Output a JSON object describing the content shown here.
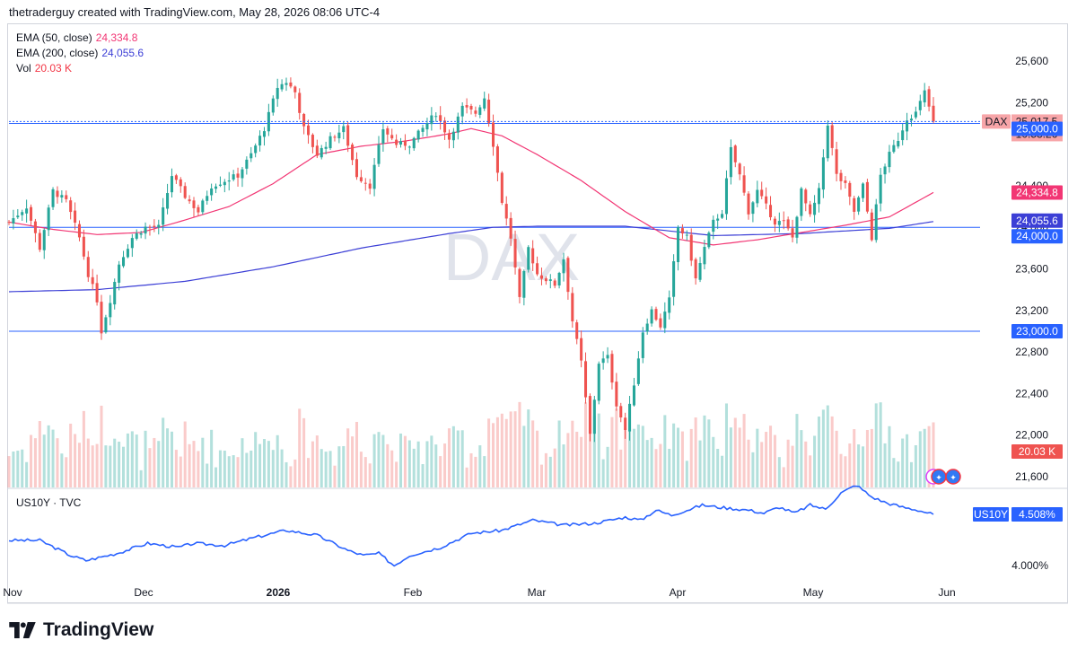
{
  "header": {
    "text": "thetraderguy created with TradingView.com, May 28, 2026 08:06 UTC-4"
  },
  "brand": {
    "name": "TradingView",
    "icon": "tradingview-logo-icon"
  },
  "watermark": "DAX",
  "legend": {
    "ema50": {
      "label": "EMA (50, close)",
      "value": "24,334.8",
      "color": "#f23674"
    },
    "ema200": {
      "label": "EMA (200, close)",
      "value": "24,055.6",
      "color": "#3c3fd6"
    },
    "vol": {
      "label": "Vol",
      "value": "20.03 K",
      "color": "#f23645"
    }
  },
  "sub_legend": {
    "label": "US10Y · TVC"
  },
  "colors": {
    "up": "#26a69a",
    "down": "#ef5350",
    "hline": "#2962ff",
    "ema50": "#f23674",
    "ema200": "#3c3fd6",
    "us10y": "#2962ff"
  },
  "price_tags": {
    "dax_label": "DAX",
    "dax_value": "25,017.5",
    "countdown": "10:53:26",
    "level_25000": "25,000.0",
    "ema50_tag": "24,334.8",
    "ema200_tag": "24,055.6",
    "level_24000": "24,000.0",
    "level_23000": "23,000.0",
    "vol_tag": "20.03 K",
    "us10y_label": "US10Y",
    "us10y_value": "4.508%"
  },
  "chart_data": [
    {
      "type": "candlestick",
      "symbol": "DAX",
      "ylim": [
        21400,
        25800
      ],
      "y_ticks": [
        21600,
        22000,
        22400,
        22800,
        23200,
        23600,
        24000,
        24400,
        25200,
        25600
      ],
      "y_tick_labels": [
        "21,600",
        "22,000",
        "22,400",
        "22,800",
        "23,200",
        "23,600",
        "24,000",
        "24,400",
        "25,200",
        "25,600"
      ],
      "x_labels": [
        "Nov",
        "Dec",
        "2026",
        "Feb",
        "Mar",
        "Apr",
        "May",
        "Jun"
      ],
      "horizontal_levels": [
        25000,
        24000,
        23000
      ],
      "last_close": 25017.5,
      "close_path": [
        [
          0,
          24050
        ],
        [
          4,
          24200
        ],
        [
          7,
          23800
        ],
        [
          10,
          24350
        ],
        [
          13,
          24250
        ],
        [
          16,
          23900
        ],
        [
          18,
          23550
        ],
        [
          20,
          23300
        ],
        [
          21,
          23000
        ],
        [
          23,
          23300
        ],
        [
          25,
          23650
        ],
        [
          28,
          23900
        ],
        [
          31,
          24000
        ],
        [
          34,
          24000
        ],
        [
          37,
          24500
        ],
        [
          40,
          24300
        ],
        [
          43,
          24150
        ],
        [
          46,
          24400
        ],
        [
          49,
          24450
        ],
        [
          52,
          24500
        ],
        [
          55,
          24700
        ],
        [
          58,
          24950
        ],
        [
          61,
          25350
        ],
        [
          63,
          25400
        ],
        [
          65,
          25300
        ],
        [
          67,
          24950
        ],
        [
          70,
          24700
        ],
        [
          73,
          24850
        ],
        [
          76,
          24950
        ],
        [
          79,
          24500
        ],
        [
          82,
          24400
        ],
        [
          85,
          24950
        ],
        [
          88,
          24800
        ],
        [
          91,
          24800
        ],
        [
          94,
          24950
        ],
        [
          97,
          25100
        ],
        [
          100,
          24850
        ],
        [
          103,
          25150
        ],
        [
          106,
          25100
        ],
        [
          108,
          25250
        ],
        [
          110,
          24800
        ],
        [
          112,
          24250
        ],
        [
          114,
          23900
        ],
        [
          116,
          23300
        ],
        [
          118,
          23800
        ],
        [
          120,
          23550
        ],
        [
          122,
          23500
        ],
        [
          124,
          23450
        ],
        [
          126,
          23700
        ],
        [
          128,
          23100
        ],
        [
          130,
          22700
        ],
        [
          132,
          22000
        ],
        [
          134,
          22700
        ],
        [
          136,
          22750
        ],
        [
          138,
          22300
        ],
        [
          140,
          22050
        ],
        [
          142,
          22500
        ],
        [
          144,
          23000
        ],
        [
          146,
          23200
        ],
        [
          148,
          23050
        ],
        [
          150,
          23300
        ],
        [
          152,
          24000
        ],
        [
          154,
          23900
        ],
        [
          156,
          23500
        ],
        [
          158,
          23800
        ],
        [
          160,
          24050
        ],
        [
          162,
          24150
        ],
        [
          164,
          24750
        ],
        [
          166,
          24500
        ],
        [
          168,
          24150
        ],
        [
          170,
          24350
        ],
        [
          172,
          24200
        ],
        [
          174,
          24050
        ],
        [
          176,
          24050
        ],
        [
          178,
          23900
        ],
        [
          180,
          24350
        ],
        [
          182,
          24100
        ],
        [
          184,
          24350
        ],
        [
          186,
          25000
        ],
        [
          188,
          24500
        ],
        [
          190,
          24400
        ],
        [
          192,
          24150
        ],
        [
          194,
          24400
        ],
        [
          196,
          23900
        ],
        [
          198,
          24500
        ],
        [
          200,
          24700
        ],
        [
          202,
          24850
        ],
        [
          204,
          25050
        ],
        [
          206,
          25100
        ],
        [
          208,
          25300
        ],
        [
          210,
          25017.5
        ]
      ],
      "ema50_path": [
        [
          0,
          24050
        ],
        [
          10,
          23980
        ],
        [
          20,
          23930
        ],
        [
          30,
          23950
        ],
        [
          40,
          24070
        ],
        [
          50,
          24200
        ],
        [
          60,
          24420
        ],
        [
          70,
          24700
        ],
        [
          80,
          24780
        ],
        [
          90,
          24830
        ],
        [
          100,
          24900
        ],
        [
          105,
          24950
        ],
        [
          112,
          24880
        ],
        [
          120,
          24700
        ],
        [
          130,
          24450
        ],
        [
          140,
          24150
        ],
        [
          150,
          23900
        ],
        [
          160,
          23830
        ],
        [
          170,
          23880
        ],
        [
          180,
          23950
        ],
        [
          190,
          24020
        ],
        [
          200,
          24100
        ],
        [
          210,
          24334.8
        ]
      ],
      "ema200_path": [
        [
          0,
          23380
        ],
        [
          20,
          23400
        ],
        [
          40,
          23480
        ],
        [
          60,
          23620
        ],
        [
          80,
          23800
        ],
        [
          100,
          23940
        ],
        [
          110,
          24000
        ],
        [
          120,
          24010
        ],
        [
          140,
          24010
        ],
        [
          160,
          23920
        ],
        [
          180,
          23940
        ],
        [
          200,
          23990
        ],
        [
          210,
          24055.6
        ]
      ],
      "volume": {
        "last": "20.03 K"
      }
    },
    {
      "type": "line",
      "series": [
        {
          "name": "US10Y · TVC"
        }
      ],
      "last_value": 4.508,
      "y_tick_labels": [
        "4.000%"
      ],
      "path": [
        [
          0,
          4.25
        ],
        [
          10,
          4.25
        ],
        [
          20,
          4.1
        ],
        [
          25,
          4.05
        ],
        [
          35,
          4.12
        ],
        [
          45,
          4.22
        ],
        [
          55,
          4.18
        ],
        [
          60,
          4.22
        ],
        [
          70,
          4.2
        ],
        [
          80,
          4.28
        ],
        [
          90,
          4.35
        ],
        [
          100,
          4.3
        ],
        [
          110,
          4.15
        ],
        [
          115,
          4.1
        ],
        [
          120,
          4.12
        ],
        [
          125,
          4.0
        ],
        [
          130,
          4.1
        ],
        [
          140,
          4.18
        ],
        [
          150,
          4.32
        ],
        [
          160,
          4.35
        ],
        [
          170,
          4.45
        ],
        [
          180,
          4.4
        ],
        [
          190,
          4.42
        ],
        [
          200,
          4.48
        ],
        [
          205,
          4.45
        ],
        [
          210,
          4.55
        ],
        [
          215,
          4.5
        ],
        [
          225,
          4.6
        ],
        [
          230,
          4.58
        ],
        [
          240,
          4.55
        ],
        [
          245,
          4.52
        ],
        [
          250,
          4.58
        ],
        [
          255,
          4.52
        ],
        [
          260,
          4.6
        ],
        [
          265,
          4.56
        ],
        [
          270,
          4.72
        ],
        [
          275,
          4.8
        ],
        [
          280,
          4.68
        ],
        [
          285,
          4.62
        ],
        [
          290,
          4.58
        ],
        [
          295,
          4.55
        ],
        [
          300,
          4.508
        ]
      ]
    }
  ]
}
